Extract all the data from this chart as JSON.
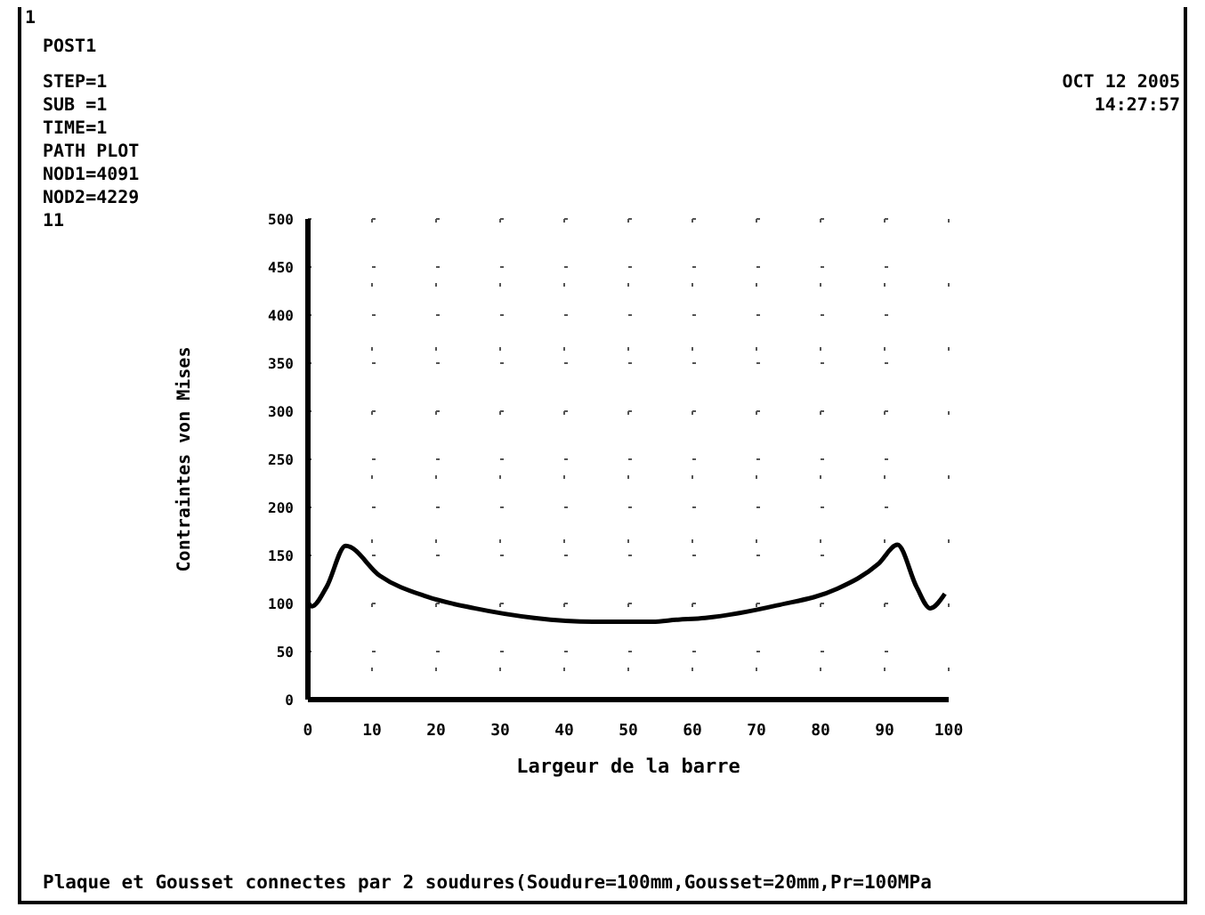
{
  "chart_data": {
    "type": "line",
    "xlabel": "Largeur de la barre",
    "ylabel": "Contraintes von Mises",
    "annotations": [
      "1",
      "POST1",
      "STEP=1",
      "SUB =1",
      "TIME=1",
      "PATH PLOT",
      "NOD1=4091",
      "NOD2=4229",
      "11",
      "OCT 12 2005",
      "14:27:57",
      "Plaque et Gousset connectes par 2 soudures(Soudure=100mm,Gousset=20mm,Pr=100MPa"
    ],
    "x": [
      0,
      0.6,
      2.9,
      5.9,
      11.2,
      18.6,
      26,
      35.3,
      44.4,
      53.8,
      57.5,
      62,
      73.2,
      82.5,
      89,
      92,
      95,
      97.1,
      99.4
    ],
    "series": [
      {
        "color": "#000000",
        "values": [
          101,
          97,
          117,
          160,
          129,
          107,
          95,
          85,
          81,
          81,
          83,
          85,
          98,
          115,
          141,
          161,
          117,
          95,
          110
        ]
      }
    ],
    "xlim": [
      0,
      100
    ],
    "xticks": [
      0,
      10,
      20,
      30,
      40,
      50,
      60,
      70,
      80,
      90,
      100
    ],
    "ylim": [
      0,
      500
    ],
    "yticks": [
      0,
      50,
      100,
      150,
      200,
      250,
      300,
      350,
      400,
      450,
      500
    ],
    "grid": true,
    "marker": "none",
    "line_style": "solid",
    "legend": false
  }
}
